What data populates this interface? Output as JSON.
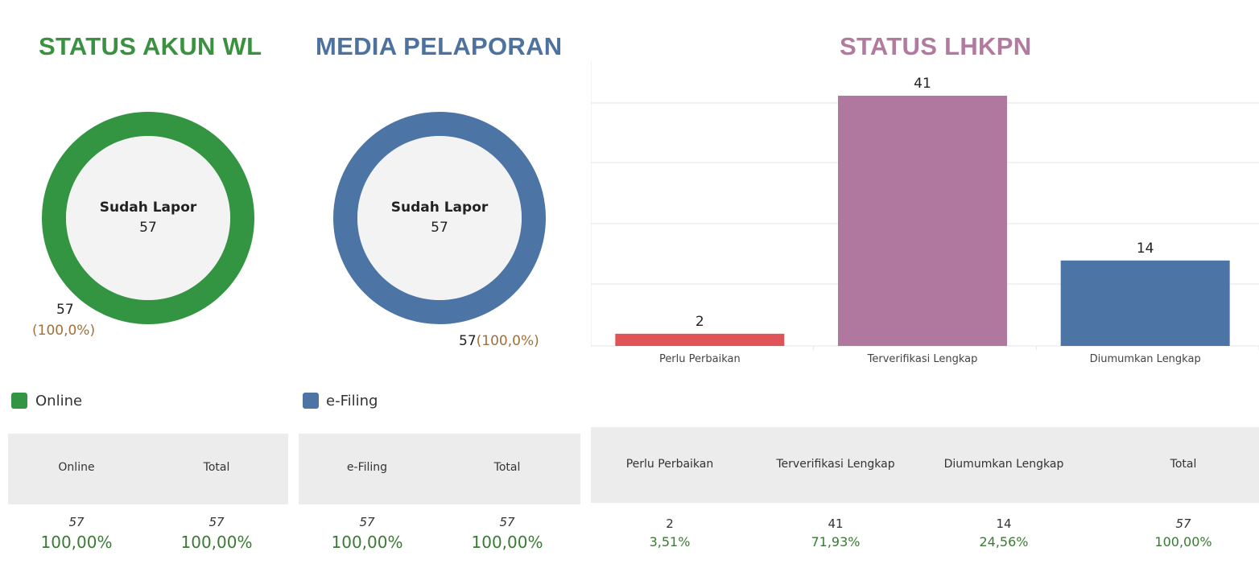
{
  "status_akun": {
    "title": "STATUS AKUN WL",
    "title_color": "#3a9140",
    "ring_color": "#339441",
    "center_label": "Sudah Lapor",
    "center_value": "57",
    "outer_label_count": "57",
    "outer_label_pct": "(100,0%)",
    "legend_label": "Online",
    "table": {
      "headers": [
        "Online",
        "Total"
      ],
      "counts": [
        "57",
        "57"
      ],
      "percents": [
        "100,00%",
        "100,00%"
      ]
    }
  },
  "media_pelaporan": {
    "title": "MEDIA PELAPORAN",
    "title_color": "#4d72a0",
    "ring_color": "#4c75a6",
    "center_label": "Sudah Lapor",
    "center_value": "57",
    "outer_label_count": "57",
    "outer_label_pct": "(100,0%)",
    "legend_label": "e-Filing",
    "table": {
      "headers": [
        "e-Filing",
        "Total"
      ],
      "counts": [
        "57",
        "57"
      ],
      "percents": [
        "100,00%",
        "100,00%"
      ]
    }
  },
  "status_lhkpn": {
    "title": "STATUS LHKPN",
    "title_color": "#b37aa0",
    "table": {
      "headers": [
        "Perlu Perbaikan",
        "Terverifikasi Lengkap",
        "Diumumkan Lengkap",
        "Total"
      ],
      "counts": [
        "2",
        "41",
        "14",
        "57"
      ],
      "percents": [
        "3,51%",
        "71,93%",
        "24,56%",
        "100,00%"
      ]
    }
  },
  "chart_data": [
    {
      "type": "pie",
      "title": "STATUS AKUN WL",
      "center_text": "Sudah Lapor 57",
      "categories": [
        "Online"
      ],
      "values": [
        57
      ],
      "colors": [
        "#339441"
      ],
      "legend_position": "bottom-left"
    },
    {
      "type": "pie",
      "title": "MEDIA PELAPORAN",
      "center_text": "Sudah Lapor 57",
      "categories": [
        "e-Filing"
      ],
      "values": [
        57
      ],
      "colors": [
        "#4c75a6"
      ],
      "legend_position": "bottom-left"
    },
    {
      "type": "bar",
      "title": "STATUS LHKPN",
      "categories": [
        "Perlu Perbaikan",
        "Terverifikasi Lengkap",
        "Diumumkan Lengkap"
      ],
      "values": [
        2,
        41,
        14
      ],
      "colors": [
        "#e05356",
        "#b0789f",
        "#4c75a6"
      ],
      "ylim": [
        0,
        41
      ],
      "grid": true
    }
  ]
}
